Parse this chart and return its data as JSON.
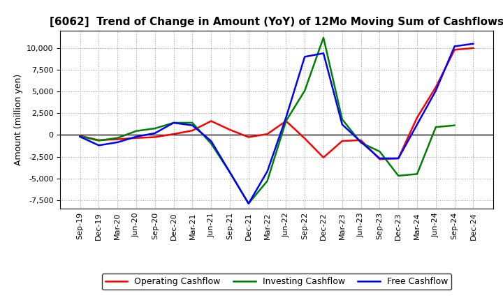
{
  "title": "[6062]  Trend of Change in Amount (YoY) of 12Mo Moving Sum of Cashflows",
  "ylabel": "Amount (million yen)",
  "x_labels": [
    "Sep-19",
    "Dec-19",
    "Mar-20",
    "Jun-20",
    "Sep-20",
    "Dec-20",
    "Mar-21",
    "Jun-21",
    "Sep-21",
    "Dec-21",
    "Mar-22",
    "Jun-22",
    "Sep-22",
    "Dec-22",
    "Mar-23",
    "Jun-23",
    "Sep-23",
    "Dec-23",
    "Mar-24",
    "Jun-24",
    "Sep-24",
    "Dec-24"
  ],
  "operating": [
    -100,
    -600,
    -500,
    -350,
    -250,
    100,
    500,
    1600,
    600,
    -250,
    100,
    1600,
    -400,
    -2600,
    -700,
    -600,
    -2800,
    -2700,
    2000,
    5500,
    9800,
    10000
  ],
  "investing": [
    -150,
    -650,
    -350,
    450,
    750,
    1400,
    1400,
    -1000,
    -4300,
    -7900,
    -5300,
    1600,
    5100,
    11200,
    1800,
    -900,
    -1900,
    -4700,
    -4500,
    900,
    1100,
    null
  ],
  "free": [
    -200,
    -1200,
    -850,
    -200,
    200,
    1400,
    1100,
    -700,
    -4300,
    -7900,
    -4200,
    2000,
    9000,
    9400,
    1200,
    -800,
    -2700,
    -2700,
    1200,
    5100,
    10200,
    10500
  ],
  "ylim": [
    -8500,
    12000
  ],
  "yticks": [
    -7500,
    -5000,
    -2500,
    0,
    2500,
    5000,
    7500,
    10000
  ],
  "operating_color": "#ff0000",
  "investing_color": "#008000",
  "free_color": "#0000ff",
  "bg_color": "#ffffff",
  "grid_color": "#999999",
  "title_fontsize": 11,
  "legend_fontsize": 9,
  "tick_fontsize": 8,
  "ylabel_fontsize": 9
}
